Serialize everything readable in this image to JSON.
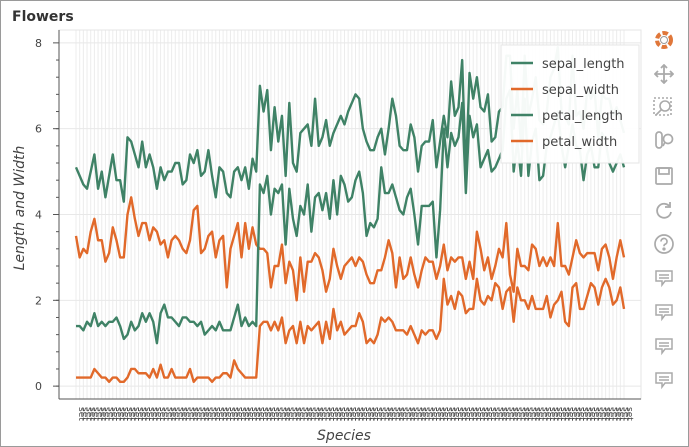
{
  "chart_data": {
    "type": "line",
    "title": "Flowers",
    "xlabel": "Species",
    "ylabel": "Length and Width",
    "ylim": [
      -0.3,
      8.3
    ],
    "yticks": [
      0,
      2,
      4,
      6,
      8
    ],
    "x_count": 150,
    "x_tick_label": "setosa",
    "grid": true,
    "legend_position": "top-right",
    "series": [
      {
        "name": "sepal_length",
        "color": "#3f8266",
        "values": [
          5.1,
          4.9,
          4.7,
          4.6,
          5.0,
          5.4,
          4.6,
          5.0,
          4.4,
          4.9,
          5.4,
          4.8,
          4.8,
          4.3,
          5.8,
          5.7,
          5.4,
          5.1,
          5.7,
          5.1,
          5.4,
          5.1,
          4.6,
          5.1,
          4.8,
          5.0,
          5.0,
          5.2,
          5.2,
          4.7,
          4.8,
          5.4,
          5.2,
          5.5,
          4.9,
          5.0,
          5.5,
          4.9,
          4.4,
          5.1,
          5.0,
          4.5,
          4.4,
          5.0,
          5.1,
          4.8,
          5.1,
          4.6,
          5.3,
          5.0,
          7.0,
          6.4,
          6.9,
          5.5,
          6.5,
          5.7,
          6.3,
          4.9,
          6.6,
          5.2,
          5.0,
          5.9,
          6.0,
          6.1,
          5.6,
          6.7,
          5.6,
          5.8,
          6.2,
          5.6,
          5.9,
          6.1,
          6.3,
          6.1,
          6.4,
          6.6,
          6.8,
          6.7,
          6.0,
          5.7,
          5.5,
          5.5,
          5.8,
          6.0,
          5.4,
          6.0,
          6.7,
          6.3,
          5.6,
          5.5,
          5.5,
          6.1,
          5.8,
          5.0,
          5.6,
          5.7,
          5.7,
          6.2,
          5.1,
          5.7,
          6.3,
          5.8,
          7.1,
          6.3,
          6.5,
          7.6,
          4.9,
          7.3,
          6.7,
          7.2,
          6.5,
          6.4,
          6.8,
          5.7,
          5.8,
          6.4,
          6.5,
          7.7,
          7.7,
          6.0,
          6.9,
          5.6,
          7.7,
          6.3,
          6.7,
          7.2,
          6.2,
          6.1,
          6.4,
          7.2,
          7.4,
          7.9,
          6.4,
          6.3,
          6.1,
          7.7,
          6.3,
          6.4,
          6.0,
          6.9,
          6.7,
          6.9,
          5.8,
          6.8,
          6.7,
          6.7,
          6.3,
          6.5,
          6.2,
          5.9
        ]
      },
      {
        "name": "sepal_width",
        "color": "#e1692a",
        "values": [
          3.5,
          3.0,
          3.2,
          3.1,
          3.6,
          3.9,
          3.4,
          3.4,
          2.9,
          3.1,
          3.7,
          3.4,
          3.0,
          3.0,
          4.0,
          4.4,
          3.9,
          3.5,
          3.8,
          3.8,
          3.4,
          3.7,
          3.6,
          3.3,
          3.4,
          3.0,
          3.4,
          3.5,
          3.4,
          3.2,
          3.1,
          3.4,
          4.1,
          4.2,
          3.1,
          3.2,
          3.5,
          3.6,
          3.0,
          3.4,
          3.5,
          2.3,
          3.2,
          3.5,
          3.8,
          3.0,
          3.8,
          3.2,
          3.7,
          3.3,
          3.2,
          3.2,
          3.1,
          2.3,
          2.8,
          2.8,
          3.3,
          2.4,
          2.9,
          2.7,
          2.0,
          3.0,
          2.2,
          2.9,
          2.9,
          3.1,
          3.0,
          2.7,
          2.2,
          2.5,
          3.2,
          2.8,
          2.5,
          2.8,
          2.9,
          3.0,
          2.8,
          3.0,
          2.9,
          2.6,
          2.4,
          2.4,
          2.7,
          2.7,
          3.0,
          3.4,
          3.1,
          2.3,
          3.0,
          2.5,
          2.6,
          3.0,
          2.6,
          2.3,
          2.7,
          3.0,
          2.9,
          2.9,
          2.5,
          2.8,
          3.3,
          2.7,
          3.0,
          2.9,
          3.0,
          3.0,
          2.5,
          2.9,
          2.5,
          3.6,
          3.2,
          2.7,
          3.0,
          2.5,
          2.8,
          3.2,
          3.0,
          3.8,
          2.6,
          2.2,
          3.2,
          2.8,
          2.8,
          2.7,
          3.3,
          3.2,
          2.8,
          3.0,
          2.8,
          3.0,
          2.8,
          3.8,
          2.8,
          2.8,
          2.6,
          3.0,
          3.4,
          3.1,
          3.0,
          3.1,
          3.1,
          3.1,
          2.7,
          3.2,
          3.3,
          3.0,
          2.5,
          3.0,
          3.4,
          3.0
        ]
      },
      {
        "name": "petal_length",
        "color": "#3f8266",
        "values": [
          1.4,
          1.4,
          1.3,
          1.5,
          1.4,
          1.7,
          1.4,
          1.5,
          1.4,
          1.5,
          1.5,
          1.6,
          1.4,
          1.1,
          1.2,
          1.5,
          1.3,
          1.4,
          1.7,
          1.5,
          1.7,
          1.5,
          1.0,
          1.7,
          1.9,
          1.6,
          1.6,
          1.5,
          1.4,
          1.6,
          1.6,
          1.5,
          1.5,
          1.4,
          1.5,
          1.2,
          1.3,
          1.4,
          1.3,
          1.5,
          1.3,
          1.3,
          1.3,
          1.6,
          1.9,
          1.4,
          1.6,
          1.4,
          1.5,
          1.4,
          4.7,
          4.5,
          4.9,
          4.0,
          4.6,
          4.5,
          4.7,
          3.3,
          4.6,
          3.9,
          3.5,
          4.2,
          4.0,
          4.7,
          3.6,
          4.4,
          4.5,
          4.1,
          4.5,
          3.9,
          4.8,
          4.0,
          4.9,
          4.7,
          4.3,
          4.4,
          4.8,
          5.0,
          4.5,
          3.5,
          3.8,
          3.7,
          3.9,
          5.1,
          4.5,
          4.5,
          4.7,
          4.4,
          4.1,
          4.0,
          4.4,
          4.6,
          4.0,
          3.3,
          4.2,
          4.2,
          4.2,
          4.3,
          3.0,
          4.1,
          6.0,
          5.1,
          5.9,
          5.6,
          5.8,
          6.6,
          4.5,
          6.3,
          5.8,
          6.1,
          5.1,
          5.3,
          5.5,
          5.0,
          5.1,
          5.3,
          5.5,
          6.7,
          6.9,
          5.0,
          5.7,
          4.9,
          6.7,
          4.9,
          5.7,
          6.0,
          4.8,
          4.9,
          5.6,
          5.8,
          6.1,
          6.4,
          5.6,
          5.1,
          5.6,
          6.1,
          5.6,
          5.5,
          4.8,
          5.4,
          5.6,
          5.1,
          5.1,
          5.9,
          5.7,
          5.2,
          5.0,
          5.2,
          5.4,
          5.1
        ]
      },
      {
        "name": "petal_width",
        "color": "#e1692a",
        "values": [
          0.2,
          0.2,
          0.2,
          0.2,
          0.2,
          0.4,
          0.3,
          0.2,
          0.2,
          0.1,
          0.2,
          0.2,
          0.1,
          0.1,
          0.2,
          0.4,
          0.4,
          0.3,
          0.3,
          0.3,
          0.2,
          0.4,
          0.2,
          0.5,
          0.2,
          0.2,
          0.4,
          0.2,
          0.2,
          0.2,
          0.2,
          0.4,
          0.1,
          0.2,
          0.2,
          0.2,
          0.2,
          0.1,
          0.2,
          0.2,
          0.3,
          0.3,
          0.2,
          0.6,
          0.4,
          0.3,
          0.2,
          0.2,
          0.2,
          0.2,
          1.4,
          1.5,
          1.5,
          1.3,
          1.5,
          1.3,
          1.6,
          1.0,
          1.3,
          1.4,
          1.0,
          1.5,
          1.0,
          1.4,
          1.3,
          1.4,
          1.5,
          1.0,
          1.5,
          1.1,
          1.8,
          1.3,
          1.5,
          1.2,
          1.3,
          1.4,
          1.4,
          1.7,
          1.5,
          1.0,
          1.1,
          1.0,
          1.2,
          1.6,
          1.5,
          1.6,
          1.5,
          1.3,
          1.3,
          1.3,
          1.2,
          1.4,
          1.2,
          1.0,
          1.3,
          1.2,
          1.3,
          1.3,
          1.1,
          1.3,
          2.5,
          1.9,
          2.1,
          1.8,
          2.2,
          2.1,
          1.7,
          1.8,
          1.8,
          2.5,
          2.0,
          1.9,
          2.1,
          2.0,
          2.4,
          2.3,
          1.8,
          2.2,
          2.3,
          1.5,
          2.3,
          2.0,
          2.0,
          1.8,
          2.1,
          1.8,
          1.8,
          1.8,
          2.1,
          1.6,
          1.9,
          2.0,
          2.2,
          1.5,
          1.4,
          2.3,
          2.4,
          1.8,
          1.8,
          2.1,
          2.4,
          2.3,
          1.9,
          2.3,
          2.5,
          2.3,
          1.9,
          2.0,
          2.3,
          1.8
        ]
      }
    ]
  },
  "toolbar": {
    "logo_color": "#e0773a",
    "tools": [
      {
        "name": "pan-tool",
        "icon": "move-arrows-icon"
      },
      {
        "name": "box-zoom-tool",
        "icon": "box-zoom-icon"
      },
      {
        "name": "wheel-zoom-tool",
        "icon": "wheel-zoom-icon"
      },
      {
        "name": "save-tool",
        "icon": "save-icon"
      },
      {
        "name": "reset-tool",
        "icon": "reset-icon"
      },
      {
        "name": "help-tool",
        "icon": "help-icon"
      },
      {
        "name": "hover-tool-1",
        "icon": "hover-icon"
      },
      {
        "name": "hover-tool-2",
        "icon": "hover-icon"
      },
      {
        "name": "hover-tool-3",
        "icon": "hover-icon"
      },
      {
        "name": "hover-tool-4",
        "icon": "hover-icon"
      }
    ]
  }
}
